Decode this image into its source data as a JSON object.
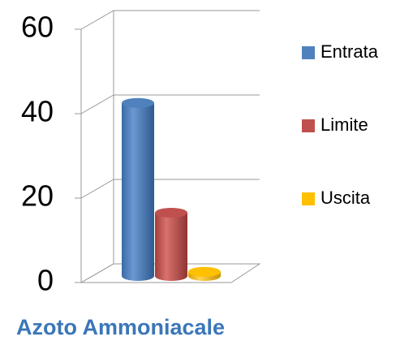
{
  "chart_data": {
    "type": "bar3d",
    "categories": [
      "Azoto Ammoniacale"
    ],
    "series": [
      {
        "name": "Entrata",
        "color": "#4f81bd",
        "values": [
          41
        ]
      },
      {
        "name": "Limite",
        "color": "#c0504d",
        "values": [
          15
        ]
      },
      {
        "name": "Uscita",
        "color": "#ffc000",
        "values": [
          1
        ]
      }
    ],
    "ylim": [
      0,
      60
    ],
    "yticks": [
      0,
      20,
      40,
      60
    ],
    "grid": true,
    "legend": "right"
  }
}
